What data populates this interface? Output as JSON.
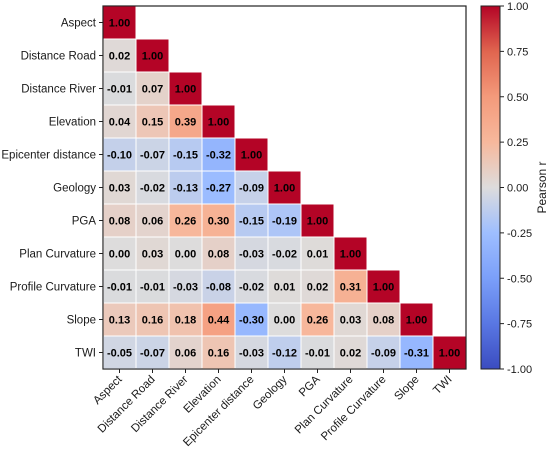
{
  "chart_data": {
    "type": "heatmap",
    "title": "",
    "variables": [
      "Aspect",
      "Distance Road",
      "Distance River",
      "Elevation",
      "Epicenter distance",
      "Geology",
      "PGA",
      "Plan Curvature",
      "Profile Curvature",
      "Slope",
      "TWI"
    ],
    "matrix_lower": [
      [
        1.0
      ],
      [
        0.02,
        1.0
      ],
      [
        -0.01,
        0.07,
        1.0
      ],
      [
        0.04,
        0.15,
        0.39,
        1.0
      ],
      [
        -0.1,
        -0.07,
        -0.15,
        -0.32,
        1.0
      ],
      [
        0.03,
        -0.02,
        -0.13,
        -0.27,
        -0.09,
        1.0
      ],
      [
        0.08,
        0.06,
        0.26,
        0.3,
        -0.15,
        -0.19,
        1.0
      ],
      [
        -0.0,
        0.03,
        0.0,
        0.08,
        -0.03,
        -0.02,
        0.01,
        1.0
      ],
      [
        -0.01,
        -0.01,
        -0.03,
        -0.08,
        -0.02,
        0.01,
        0.02,
        0.31,
        1.0
      ],
      [
        0.13,
        0.16,
        0.18,
        0.44,
        -0.3,
        -0.0,
        0.26,
        0.03,
        0.08,
        1.0
      ],
      [
        -0.05,
        -0.07,
        0.06,
        0.16,
        -0.03,
        -0.12,
        -0.01,
        0.02,
        -0.09,
        -0.31,
        1.0
      ]
    ],
    "colorbar": {
      "label": "Pearson r",
      "range": [
        -1.0,
        1.0
      ],
      "ticks": [
        "-1.00",
        "-0.75",
        "-0.50",
        "-0.25",
        "0.00",
        "0.25",
        "0.50",
        "0.75",
        "1.00"
      ],
      "colormap": "coolwarm",
      "colors": [
        "#3b4cc0",
        "#dddddd",
        "#b40426"
      ]
    },
    "triangle": "lower",
    "grid": false,
    "cell_labels": true
  }
}
